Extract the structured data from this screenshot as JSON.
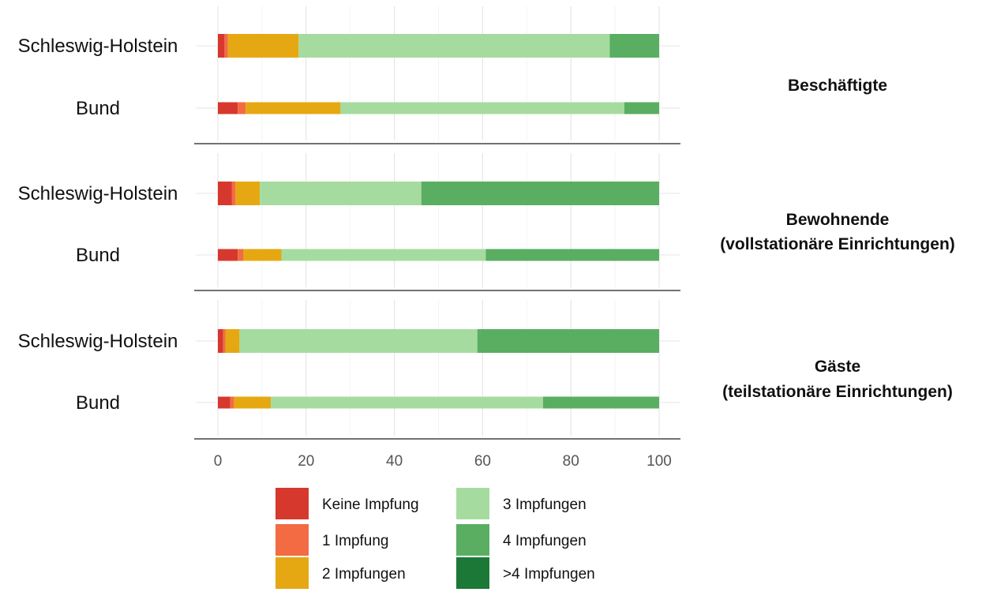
{
  "chart_data": {
    "type": "bar",
    "orientation": "horizontal",
    "stacked": true,
    "xlim": [
      0,
      100
    ],
    "xticks": [
      "0",
      "20",
      "40",
      "60",
      "80",
      "100"
    ],
    "grid": true,
    "legend_position": "bottom",
    "categories_legend": [
      "Keine Impfung",
      "1 Impfung",
      "2 Impfungen",
      "3 Impfungen",
      "4 Impfungen",
      ">4 Impfungen"
    ],
    "colors": [
      "#d7382e",
      "#f26b43",
      "#e6a812",
      "#a6dba0",
      "#5aae61",
      "#1b7837"
    ],
    "panels": [
      {
        "label": "Beschäftigte",
        "rows": [
          {
            "name": "Schleswig-Holstein",
            "values": [
              1.5,
              0.8,
              16,
              70.5,
              11.2,
              0
            ]
          },
          {
            "name": "Bund",
            "values": [
              4.5,
              1.8,
              21.5,
              64.3,
              7.9,
              0
            ]
          }
        ]
      },
      {
        "label": "Bewohnende\n(vollstationäre Einrichtungen)",
        "rows": [
          {
            "name": "Schleswig-Holstein",
            "values": [
              3.2,
              0.8,
              5.5,
              36.6,
              53.9,
              0
            ]
          },
          {
            "name": "Bund",
            "values": [
              4.5,
              1.3,
              8.6,
              46.3,
              39.3,
              0
            ]
          }
        ]
      },
      {
        "label": "Gäste\n(teilstationäre Einrichtungen)",
        "rows": [
          {
            "name": "Schleswig-Holstein",
            "values": [
              1.2,
              0.5,
              3.2,
              53.9,
              41.2,
              0
            ]
          },
          {
            "name": "Bund",
            "values": [
              2.8,
              0.9,
              8.3,
              61.7,
              26.3,
              0
            ]
          }
        ]
      }
    ]
  }
}
